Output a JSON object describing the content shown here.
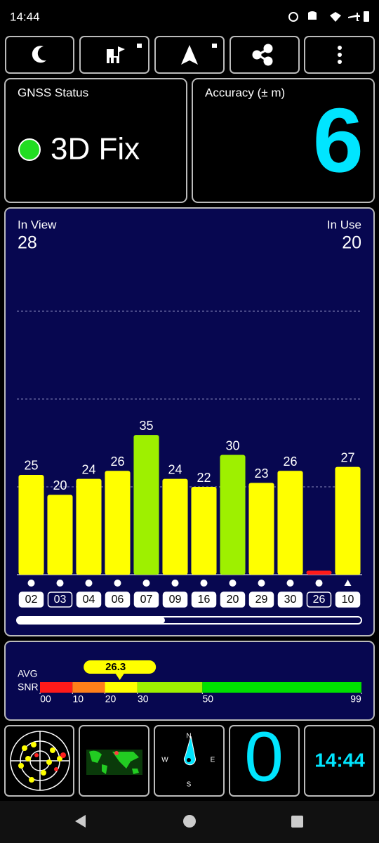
{
  "status_bar": {
    "time": "14:44"
  },
  "gnss_status": {
    "label": "GNSS Status",
    "value": "3D Fix"
  },
  "accuracy": {
    "label": "Accuracy (± m)",
    "value": 6
  },
  "satellites": {
    "in_view_label": "In View",
    "in_view": 28,
    "in_use_label": "In Use",
    "in_use": 20,
    "chart": {
      "type": "bar",
      "categories": [
        "02",
        "03",
        "04",
        "06",
        "07",
        "09",
        "16",
        "20",
        "29",
        "30",
        "26",
        "10"
      ],
      "values": [
        25,
        20,
        24,
        26,
        35,
        24,
        22,
        30,
        23,
        26,
        1,
        27
      ],
      "value_labels": [
        "25",
        "20",
        "24",
        "26",
        "35",
        "24",
        "22",
        "30",
        "23",
        "26",
        null,
        "27"
      ],
      "colors": [
        "#ffff00",
        "#ffff00",
        "#ffff00",
        "#ffff00",
        "#9ef000",
        "#ffff00",
        "#ffff00",
        "#9ef000",
        "#ffff00",
        "#ffff00",
        "#ff1a1a",
        "#ffff00"
      ],
      "used": [
        true,
        false,
        true,
        true,
        true,
        true,
        true,
        true,
        true,
        true,
        false,
        true
      ],
      "markers": [
        "circle",
        "circle",
        "circle",
        "circle",
        "circle",
        "circle",
        "circle",
        "circle",
        "circle",
        "circle",
        "circle",
        "triangle"
      ],
      "ylim": [
        0,
        91
      ],
      "yticks": [
        22,
        44,
        66
      ],
      "grid": true
    }
  },
  "avg_snr": {
    "label_1": "AVG",
    "label_2": "SNR",
    "value": 26.3,
    "xlim": [
      0,
      99
    ],
    "xticks": [
      {
        "value": 0,
        "label": "00"
      },
      10,
      20,
      30,
      50,
      99
    ],
    "segment_colors": [
      "#ff1a1a",
      "#ff7f1a",
      "#ffff00",
      "#9ef000",
      "#00e000"
    ]
  },
  "tiles": {
    "speed": 0,
    "clock": "14:44",
    "compass": [
      "N",
      "E",
      "S",
      "W"
    ]
  }
}
